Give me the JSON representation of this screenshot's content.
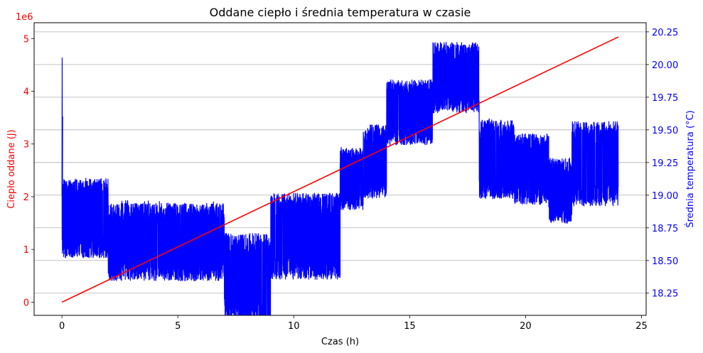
{
  "chart_data": {
    "type": "line",
    "title": "Oddane ciepło i średnia temperatura w czasie",
    "xlabel": "Czas (h)",
    "ylabel_left": "Ciepło oddane (J)",
    "ylabel_right": "Średnia temperatura (°C)",
    "left_offset_label": "1e6",
    "xlim": [
      -1.2,
      25.2
    ],
    "ylim_left": [
      -0.25,
      5.3
    ],
    "ylim_right": [
      18.08,
      20.32
    ],
    "x_ticks": [
      0,
      5,
      10,
      15,
      20,
      25
    ],
    "y_left_ticks": [
      0,
      1,
      2,
      3,
      4,
      5
    ],
    "y_right_ticks": [
      "18.25",
      "18.50",
      "18.75",
      "19.00",
      "19.25",
      "19.50",
      "19.75",
      "20.00",
      "20.25"
    ],
    "grid": "horizontal lines on right axis",
    "colors": {
      "heat": "#ff0000",
      "temperature": "#0000ff",
      "grid": "#b0b0b0"
    },
    "series": [
      {
        "axis": "left",
        "color": "#ff0000",
        "x": [
          0,
          24
        ],
        "y": [
          0,
          5.03
        ]
      },
      {
        "axis": "right",
        "color": "#0000ff",
        "segments": [
          {
            "x": [
              0,
              2.0
            ],
            "low": 18.6,
            "high": 19.05,
            "peak": 19.13,
            "trough": 18.52
          },
          {
            "x": [
              2.0,
              7.0
            ],
            "low": 18.42,
            "high": 18.86,
            "peak": 18.96,
            "trough": 18.38
          },
          {
            "x": [
              7.0,
              9.0
            ],
            "low": 18.12,
            "high": 18.62,
            "peak": 18.7,
            "trough": 18.08
          },
          {
            "x": [
              9.0,
              12.0
            ],
            "low": 18.44,
            "high": 18.93,
            "peak": 19.02,
            "trough": 18.4
          },
          {
            "x": [
              12.0,
              13.0
            ],
            "low": 18.95,
            "high": 19.3,
            "peak": 19.37,
            "trough": 18.88
          },
          {
            "x": [
              13.0,
              14.0
            ],
            "low": 19.05,
            "high": 19.47,
            "peak": 19.52,
            "trough": 18.99
          },
          {
            "x": [
              14.0,
              16.0
            ],
            "low": 19.45,
            "high": 19.82,
            "peak": 19.88,
            "trough": 19.4
          },
          {
            "x": [
              16.0,
              18.0
            ],
            "low": 19.7,
            "high": 20.1,
            "peak": 20.18,
            "trough": 19.65
          },
          {
            "x": [
              18.0,
              19.5
            ],
            "low": 19.05,
            "high": 19.5,
            "peak": 19.6,
            "trough": 19.0
          },
          {
            "x": [
              19.5,
              21.0
            ],
            "low": 19.0,
            "high": 19.4,
            "peak": 19.47,
            "trough": 18.97
          },
          {
            "x": [
              21.0,
              22.0
            ],
            "low": 18.85,
            "high": 19.22,
            "peak": 19.28,
            "trough": 18.79
          },
          {
            "x": [
              22.0,
              24.0
            ],
            "low": 19.0,
            "high": 19.48,
            "peak": 19.52,
            "trough": 18.98
          }
        ],
        "initial_spike": {
          "x": 0.03,
          "y": 20.05
        }
      }
    ]
  }
}
